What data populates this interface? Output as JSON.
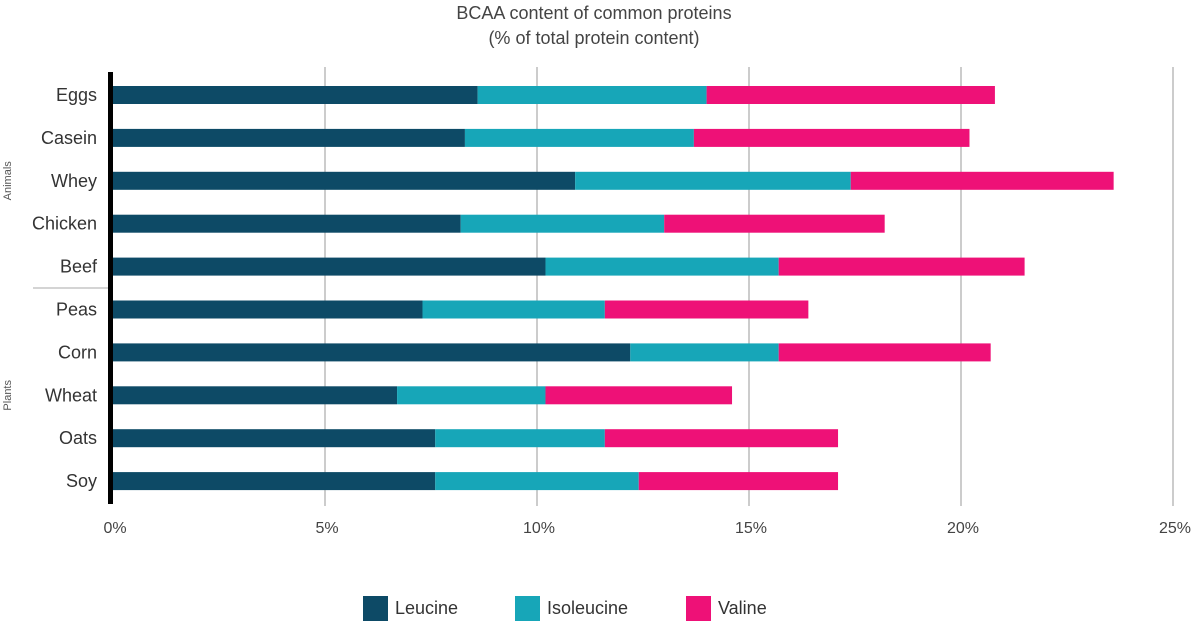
{
  "chart_data": {
    "type": "bar",
    "orientation": "horizontal",
    "stacked": true,
    "title": "BCAA content of common proteins",
    "subtitle": "(% of total protein content)",
    "categories": [
      "Eggs",
      "Casein",
      "Whey",
      "Chicken",
      "Beef",
      "Peas",
      "Corn",
      "Wheat",
      "Oats",
      "Soy"
    ],
    "groups": [
      {
        "name": "Animals",
        "categories": [
          "Eggs",
          "Casein",
          "Whey",
          "Chicken",
          "Beef"
        ]
      },
      {
        "name": "Plants",
        "categories": [
          "Peas",
          "Corn",
          "Wheat",
          "Oats",
          "Soy"
        ]
      }
    ],
    "series": [
      {
        "name": "Leucine",
        "color": "#0d4a66",
        "values": [
          8.6,
          8.3,
          10.9,
          8.2,
          10.2,
          7.3,
          12.2,
          6.7,
          7.6,
          7.6
        ]
      },
      {
        "name": "Isoleucine",
        "color": "#17a6b8",
        "values": [
          5.4,
          5.4,
          6.5,
          4.8,
          5.5,
          4.3,
          3.5,
          3.5,
          4.0,
          4.8
        ]
      },
      {
        "name": "Valine",
        "color": "#ee1177",
        "values": [
          6.8,
          6.5,
          6.2,
          5.2,
          5.8,
          4.8,
          5.0,
          4.4,
          5.5,
          4.7
        ]
      }
    ],
    "xlim": [
      0,
      25
    ],
    "x_ticks": [
      "0%",
      "5%",
      "10%",
      "15%",
      "20%",
      "25%"
    ],
    "grid": true,
    "legend_position": "bottom"
  }
}
